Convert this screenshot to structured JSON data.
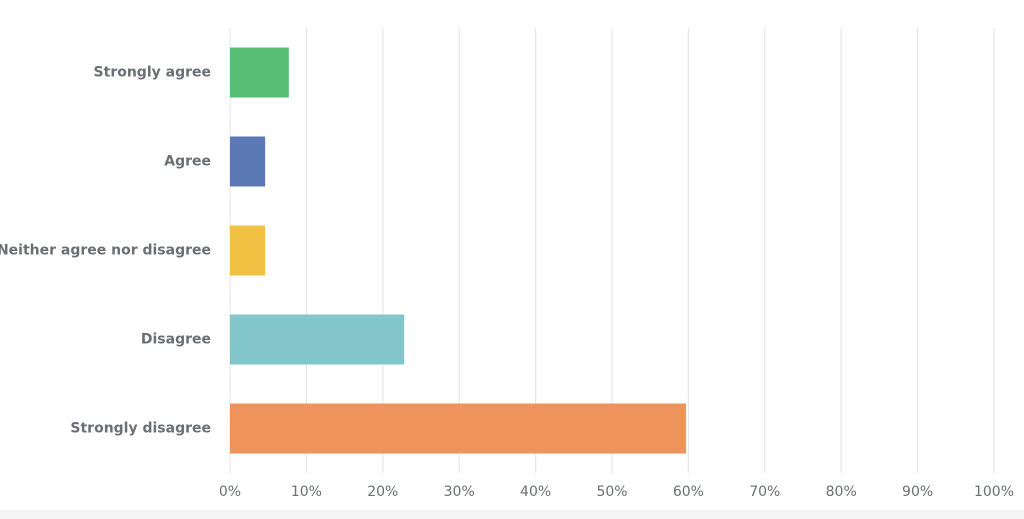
{
  "chart_data": {
    "type": "bar",
    "orientation": "horizontal",
    "categories": [
      "Strongly agree",
      "Agree",
      "Neither agree nor disagree",
      "Disagree",
      "Strongly disagree"
    ],
    "values": [
      7.7,
      4.6,
      4.6,
      22.8,
      59.7
    ],
    "colors": [
      "#57bd73",
      "#5b7ab5",
      "#f0c142",
      "#82c5ca",
      "#ef935d"
    ],
    "xlim": [
      0,
      100
    ],
    "xticks": [
      {
        "value": 0,
        "label": "0%"
      },
      {
        "value": 10,
        "label": "10%"
      },
      {
        "value": 20,
        "label": "20%"
      },
      {
        "value": 30,
        "label": "30%"
      },
      {
        "value": 40,
        "label": "40%"
      },
      {
        "value": 50,
        "label": "50%"
      },
      {
        "value": 60,
        "label": "60%"
      },
      {
        "value": 70,
        "label": "70%"
      },
      {
        "value": 80,
        "label": "80%"
      },
      {
        "value": 90,
        "label": "90%"
      },
      {
        "value": 100,
        "label": "100%"
      }
    ],
    "grid": true
  }
}
